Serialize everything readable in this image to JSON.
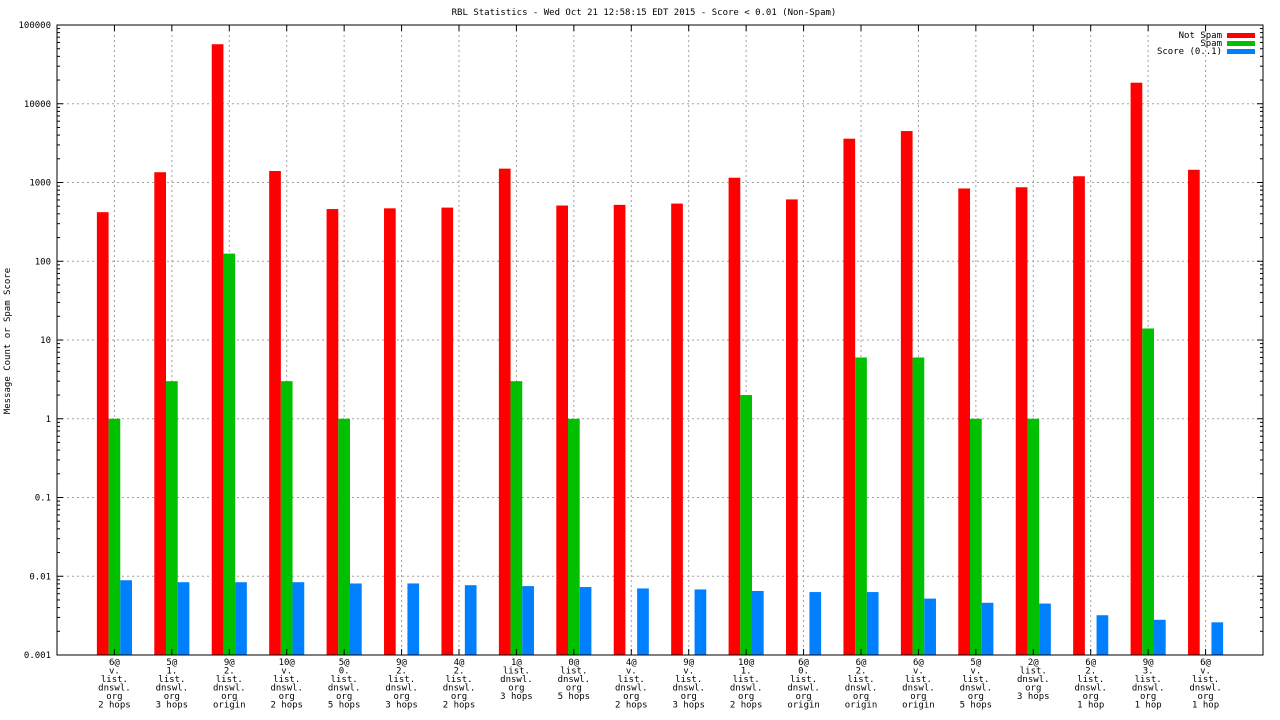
{
  "chart_data": {
    "type": "bar",
    "title": "RBL Statistics - Wed Oct 21 12:58:15 EDT 2015 - Score < 0.01 (Non-Spam)",
    "xlabel": "",
    "ylabel": "Message Count or Spam Score",
    "yscale": "log",
    "ylim": [
      0.001,
      100000
    ],
    "ytick_labels": [
      "0.001",
      "0.01",
      "0.1",
      "1",
      "10",
      "100",
      "1000",
      "10000",
      "100000"
    ],
    "grid": true,
    "legend_position": "top-right",
    "categories": [
      [
        "6@",
        "v.",
        "list.",
        "dnswl.",
        "org",
        "2 hops"
      ],
      [
        "5@",
        "1.",
        "list.",
        "dnswl.",
        "org",
        "3 hops"
      ],
      [
        "9@",
        "2.",
        "list.",
        "dnswl.",
        "org",
        "origin"
      ],
      [
        "10@",
        "v.",
        "list.",
        "dnswl.",
        "org",
        "2 hops"
      ],
      [
        "5@",
        "0.",
        "list.",
        "dnswl.",
        "org",
        "5 hops"
      ],
      [
        "9@",
        "2.",
        "list.",
        "dnswl.",
        "org",
        "3 hops"
      ],
      [
        "4@",
        "2.",
        "list.",
        "dnswl.",
        "org",
        "2 hops"
      ],
      [
        "1@",
        "list.",
        "dnswl.",
        "org",
        "3 hops"
      ],
      [
        "0@",
        "list.",
        "dnswl.",
        "org",
        "5 hops"
      ],
      [
        "4@",
        "v.",
        "list.",
        "dnswl.",
        "org",
        "2 hops"
      ],
      [
        "9@",
        "v.",
        "list.",
        "dnswl.",
        "org",
        "3 hops"
      ],
      [
        "10@",
        "1.",
        "list.",
        "dnswl.",
        "org",
        "2 hops"
      ],
      [
        "6@",
        "0.",
        "list.",
        "dnswl.",
        "org",
        "origin"
      ],
      [
        "6@",
        "2.",
        "list.",
        "dnswl.",
        "org",
        "origin"
      ],
      [
        "6@",
        "v.",
        "list.",
        "dnswl.",
        "org",
        "origin"
      ],
      [
        "5@",
        "v.",
        "list.",
        "dnswl.",
        "org",
        "5 hops"
      ],
      [
        "2@",
        "list.",
        "dnswl.",
        "org",
        "3 hops"
      ],
      [
        "6@",
        "2.",
        "list.",
        "dnswl.",
        "org",
        "1 hop"
      ],
      [
        "9@",
        "3.",
        "list.",
        "dnswl.",
        "org",
        "1 hop"
      ],
      [
        "6@",
        "v.",
        "list.",
        "dnswl.",
        "org",
        "1 hop"
      ]
    ],
    "series": [
      {
        "name": "Not Spam",
        "color": "#ff0000",
        "values": [
          420,
          1350,
          57000,
          1400,
          460,
          470,
          480,
          1500,
          510,
          520,
          540,
          1150,
          610,
          3600,
          4500,
          840,
          870,
          1200,
          18500,
          1450
        ]
      },
      {
        "name": "Spam",
        "color": "#00c000",
        "values": [
          1,
          3,
          125,
          3,
          1,
          null,
          null,
          3,
          1,
          null,
          null,
          2,
          null,
          6,
          6,
          1,
          1,
          null,
          14,
          null
        ]
      },
      {
        "name": "Score (0..1)",
        "color": "#0080ff",
        "values": [
          0.0089,
          0.0084,
          0.0084,
          0.0084,
          0.0081,
          0.0081,
          0.0077,
          0.0075,
          0.0073,
          0.007,
          0.0068,
          0.0065,
          0.0063,
          0.0063,
          0.0052,
          0.0046,
          0.0045,
          0.0032,
          0.0028,
          0.0026
        ]
      }
    ]
  }
}
